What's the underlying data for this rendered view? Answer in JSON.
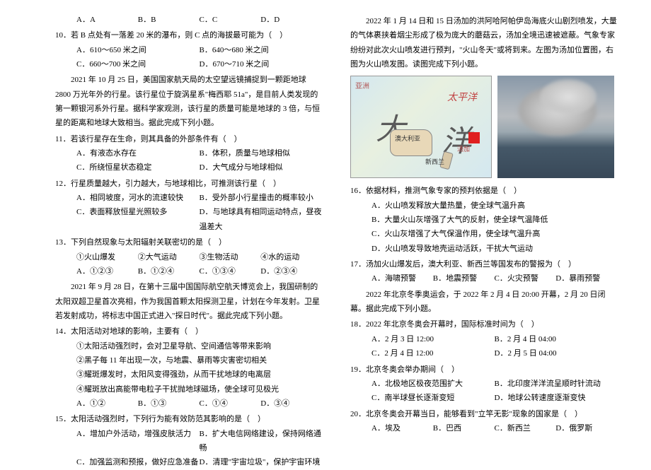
{
  "left": {
    "q9opts": {
      "a": "A．A",
      "b": "B．B",
      "c": "C．C",
      "d": "D．D"
    },
    "q10": "10．若 B 点处有一落差 20 米的瀑布，则 C 点的海拔最可能为（　）",
    "q10opts": {
      "a": "A．610～650 米之间",
      "b": "B．640～680 米之间",
      "c": "C．660～700 米之间",
      "d": "D．670～710 米之间"
    },
    "p1": "2021 年 10 月 25 日，美国国家航天局的太空望远镜捕捉到一颗距地球 2800 万光年外的行星。该行星位于旋涡星系\"梅西耶 51a\"，是目前人类发现的第一颗银河系外行星。据科学家观测，该行星的质量可能是地球的 3 倍，与恒星的距离和地球大致相当。据此完成下列小题。",
    "q11": "11．若该行星存在生命，则其具备的外部条件有（　）",
    "q11opts": {
      "a": "A．有液态水存在",
      "b": "B．体积，质量与地球相似",
      "c": "C．所绕恒星状态稳定",
      "d": "D．大气成分与地球相似"
    },
    "q12": "12．行星质量越大，引力越大，与地球相比，可推测该行星（　）",
    "q12opts": {
      "a": "A．相同坡度，河水的流速较快",
      "b": "B．受外部小行星撞击的概率较小",
      "c": "C．表面释放恒星光照较多",
      "d": "D．与地球具有相同运动特点，昼夜温差大"
    },
    "q13": "13．下列自然现象与太阳辐射关联密切的是（　）",
    "q13sub": {
      "s1": "①火山爆发",
      "s2": "②大气运动",
      "s3": "③生物活动",
      "s4": "④水的运动"
    },
    "q13opts": {
      "a": "A．①②③",
      "b": "B．①②④",
      "c": "C．①③④",
      "d": "D．②③④"
    },
    "p2": "2021 年 9 月 28 日，在第十三届中国国际航空航天博览会上，我国研制的太阳双超卫星首次亮相，作为我国首颗太阳探测卫星，计划在今年发射。卫星若发射成功，将标志中国正式进入\"探日时代\"。据此完成下列小题。",
    "q14": "14．太阳活动对地球的影响，主要有（　）",
    "q14sub": {
      "s1": "①太阳活动强烈时，会对卫星导航、空间通信等带来影响",
      "s2": "②黑子每 11 年出现一次，与地震、暴雨等灾害密切相关",
      "s3": "③耀斑爆发时，太阳风变得强劲，从而干扰地球的电离层",
      "s4": "④耀斑放出高能带电粒子干扰抛地球磁场，使全球可见极光"
    },
    "q14opts": {
      "a": "A．①②",
      "b": "B．①③",
      "c": "C．①④",
      "d": "D．③④"
    },
    "q15": "15．太阳活动强烈时，下列行为能有效防范其影响的是（　）",
    "q15opts": {
      "a": "A．增加户外活动，增强皮肤活力",
      "b": "B．扩大电信网络建设，保持网络通畅",
      "c": "C．加强监测和预报，做好应急准备",
      "d": "D．清理\"宇宙垃圾\"，保护宇宙环境"
    }
  },
  "right": {
    "p3": "2022 年 1 月 14 日和 15 日汤加的洪阿哈阿帕伊岛海底火山剧烈喷发，大量的气体裹挟着烟尘形成了极为庞大的蘑菇云，汤加全境迅速被遮蔽。气象专家纷纷对此次火山喷发进行预判，\"火山冬天\"或将到来。左图为汤加位置图，右图为火山喷发图。读图完成下列小题。",
    "map": {
      "asia": "亚洲",
      "pacific": "太平洋",
      "big1": "大",
      "big2": "洋",
      "aus": "澳大利亚",
      "nz": "新西兰",
      "tonga": "汤加"
    },
    "q16": "16．依据材料，推测气象专家的预判依据是（　）",
    "q16opts": {
      "a": "A．火山喷发释放大量热量，使全球气温升高",
      "b": "B．大量火山灰增强了大气的反射，使全球气温降低",
      "c": "C．火山灰增强了大气保温作用，使全球气温升高",
      "d": "D．火山喷发导致地壳运动活跃，干扰大气运动"
    },
    "q17": "17．汤加火山爆发后，澳大利亚、新西兰等国发布的警报为（　）",
    "q17opts": {
      "a": "A．海啸预警",
      "b": "B．地震预警",
      "c": "C．火灾预警",
      "d": "D．暴雨预警"
    },
    "p4": "2022 年北京冬季奥运会，于 2022 年 2 月 4 日 20:00 开幕，2 月 20 日闭幕。据此完成下列小题。",
    "q18": "18．2022 年北京冬奥会开幕时，国际标准时间为（　）",
    "q18opts": {
      "a": "A．2 月 3 日 12:00",
      "b": "B．2 月 4 日 04:00",
      "c": "C．2 月 4 日 12:00",
      "d": "D．2 月 5 日 04:00"
    },
    "q19": "19．北京冬奥会举办期间（　）",
    "q19opts": {
      "a": "A．北极地区极夜范围扩大",
      "b": "B．北印度洋洋流呈顺时针流动",
      "c": "C．南半球昼长逐渐变短",
      "d": "D．地球公转速度逐渐变快"
    },
    "q20": "20．北京冬奥会开幕当日，能够看到\"立竿无影\"现象的国家是（　）",
    "q20opts": {
      "a": "A．埃及",
      "b": "B．巴西",
      "c": "C．新西兰",
      "d": "D．俄罗斯"
    }
  }
}
